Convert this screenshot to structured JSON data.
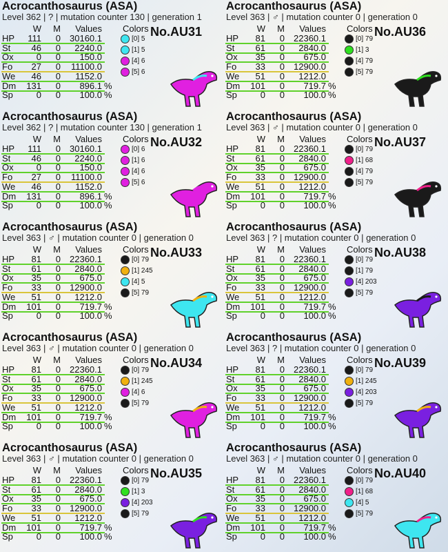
{
  "cards": [
    {
      "title": "Acrocanthosaurus (ASA)",
      "info": "Level 362 | ? | mutation counter 130 | generation 1",
      "headers": [
        "W",
        "M",
        "Values",
        "Colors"
      ],
      "id": "No.AU31",
      "stats": [
        {
          "name": "HP",
          "w": "111",
          "m": "0",
          "value": "30160.1"
        },
        {
          "name": "St",
          "w": "46",
          "m": "0",
          "value": "2240.0"
        },
        {
          "name": "Ox",
          "w": "0",
          "m": "0",
          "value": "150.0"
        },
        {
          "name": "Fo",
          "w": "27",
          "m": "0",
          "value": "11100.0"
        },
        {
          "name": "We",
          "w": "46",
          "m": "0",
          "value": "1152.0"
        },
        {
          "name": "Dm",
          "w": "131",
          "m": "0",
          "value": "896.1",
          "unit": "%"
        },
        {
          "name": "Sp",
          "w": "0",
          "m": "0",
          "value": "100.0",
          "unit": "%"
        }
      ],
      "colors": [
        {
          "label": "[0] 5",
          "color": "#3ee6f0"
        },
        {
          "label": "[1] 5",
          "color": "#3ee6f0"
        },
        {
          "label": "[4] 6",
          "color": "#e020e0"
        },
        {
          "label": "[5] 6",
          "color": "#e020e0"
        }
      ]
    },
    {
      "title": "Acrocanthosaurus (ASA)",
      "info": "Level 363 | ♂ | mutation counter 0 | generation 0",
      "headers": [
        "W",
        "M",
        "Values",
        "Colors"
      ],
      "id": "No.AU36",
      "stats": [
        {
          "name": "HP",
          "w": "81",
          "m": "0",
          "value": "22360.1"
        },
        {
          "name": "St",
          "w": "61",
          "m": "0",
          "value": "2840.0"
        },
        {
          "name": "Ox",
          "w": "35",
          "m": "0",
          "value": "675.0"
        },
        {
          "name": "Fo",
          "w": "33",
          "m": "0",
          "value": "12900.0"
        },
        {
          "name": "We",
          "w": "51",
          "m": "0",
          "value": "1212.0"
        },
        {
          "name": "Dm",
          "w": "101",
          "m": "0",
          "value": "719.7",
          "unit": "%"
        },
        {
          "name": "Sp",
          "w": "0",
          "m": "0",
          "value": "100.0",
          "unit": "%"
        }
      ],
      "colors": [
        {
          "label": "[0] 79",
          "color": "#1a1a1a"
        },
        {
          "label": "[1] 3",
          "color": "#30e020"
        },
        {
          "label": "[4] 79",
          "color": "#1a1a1a"
        },
        {
          "label": "[5] 79",
          "color": "#1a1a1a"
        }
      ]
    },
    {
      "title": "Acrocanthosaurus (ASA)",
      "info": "Level 362 | ? | mutation counter 130 | generation 1",
      "headers": [
        "W",
        "M",
        "Values",
        "Colors"
      ],
      "id": "No.AU32",
      "stats": [
        {
          "name": "HP",
          "w": "111",
          "m": "0",
          "value": "30160.1"
        },
        {
          "name": "St",
          "w": "46",
          "m": "0",
          "value": "2240.0"
        },
        {
          "name": "Ox",
          "w": "0",
          "m": "0",
          "value": "150.0"
        },
        {
          "name": "Fo",
          "w": "27",
          "m": "0",
          "value": "11100.0"
        },
        {
          "name": "We",
          "w": "46",
          "m": "0",
          "value": "1152.0"
        },
        {
          "name": "Dm",
          "w": "131",
          "m": "0",
          "value": "896.1",
          "unit": "%"
        },
        {
          "name": "Sp",
          "w": "0",
          "m": "0",
          "value": "100.0",
          "unit": "%"
        }
      ],
      "colors": [
        {
          "label": "[0] 6",
          "color": "#e020e0"
        },
        {
          "label": "[1] 6",
          "color": "#e020e0"
        },
        {
          "label": "[4] 6",
          "color": "#e020e0"
        },
        {
          "label": "[5] 6",
          "color": "#e020e0"
        }
      ]
    },
    {
      "title": "Acrocanthosaurus (ASA)",
      "info": "Level 363 | ♂ | mutation counter 0 | generation 0",
      "headers": [
        "W",
        "M",
        "Values",
        "Colors"
      ],
      "id": "No.AU37",
      "stats": [
        {
          "name": "HP",
          "w": "81",
          "m": "0",
          "value": "22360.1"
        },
        {
          "name": "St",
          "w": "61",
          "m": "0",
          "value": "2840.0"
        },
        {
          "name": "Ox",
          "w": "35",
          "m": "0",
          "value": "675.0"
        },
        {
          "name": "Fo",
          "w": "33",
          "m": "0",
          "value": "12900.0"
        },
        {
          "name": "We",
          "w": "51",
          "m": "0",
          "value": "1212.0"
        },
        {
          "name": "Dm",
          "w": "101",
          "m": "0",
          "value": "719.7",
          "unit": "%"
        },
        {
          "name": "Sp",
          "w": "0",
          "m": "0",
          "value": "100.0",
          "unit": "%"
        }
      ],
      "colors": [
        {
          "label": "[0] 79",
          "color": "#1a1a1a"
        },
        {
          "label": "[1] 68",
          "color": "#f0208a"
        },
        {
          "label": "[4] 79",
          "color": "#1a1a1a"
        },
        {
          "label": "[5] 79",
          "color": "#1a1a1a"
        }
      ]
    },
    {
      "title": "Acrocanthosaurus (ASA)",
      "info": "Level 363 | ♂ | mutation counter 0 | generation 0",
      "headers": [
        "W",
        "M",
        "Values",
        "Colors"
      ],
      "id": "No.AU33",
      "stats": [
        {
          "name": "HP",
          "w": "81",
          "m": "0",
          "value": "22360.1"
        },
        {
          "name": "St",
          "w": "61",
          "m": "0",
          "value": "2840.0"
        },
        {
          "name": "Ox",
          "w": "35",
          "m": "0",
          "value": "675.0"
        },
        {
          "name": "Fo",
          "w": "33",
          "m": "0",
          "value": "12900.0"
        },
        {
          "name": "We",
          "w": "51",
          "m": "0",
          "value": "1212.0"
        },
        {
          "name": "Dm",
          "w": "101",
          "m": "0",
          "value": "719.7",
          "unit": "%"
        },
        {
          "name": "Sp",
          "w": "0",
          "m": "0",
          "value": "100.0",
          "unit": "%"
        }
      ],
      "colors": [
        {
          "label": "[0] 79",
          "color": "#1a1a1a"
        },
        {
          "label": "[1] 245",
          "color": "#f0b010"
        },
        {
          "label": "[4] 5",
          "color": "#3ee6f0"
        },
        {
          "label": "[5] 79",
          "color": "#1a1a1a"
        }
      ]
    },
    {
      "title": "Acrocanthosaurus (ASA)",
      "info": "Level 363 | ? | mutation counter 0 | generation 0",
      "headers": [
        "W",
        "M",
        "Values",
        "Colors"
      ],
      "id": "No.AU38",
      "stats": [
        {
          "name": "HP",
          "w": "81",
          "m": "0",
          "value": "22360.1"
        },
        {
          "name": "St",
          "w": "61",
          "m": "0",
          "value": "2840.0"
        },
        {
          "name": "Ox",
          "w": "35",
          "m": "0",
          "value": "675.0"
        },
        {
          "name": "Fo",
          "w": "33",
          "m": "0",
          "value": "12900.0"
        },
        {
          "name": "We",
          "w": "51",
          "m": "0",
          "value": "1212.0"
        },
        {
          "name": "Dm",
          "w": "101",
          "m": "0",
          "value": "719.7",
          "unit": "%"
        },
        {
          "name": "Sp",
          "w": "0",
          "m": "0",
          "value": "100.0",
          "unit": "%"
        }
      ],
      "colors": [
        {
          "label": "[0] 79",
          "color": "#1a1a1a"
        },
        {
          "label": "[1] 79",
          "color": "#1a1a1a"
        },
        {
          "label": "[4] 203",
          "color": "#7a20e0"
        },
        {
          "label": "[5] 79",
          "color": "#1a1a1a"
        }
      ]
    },
    {
      "title": "Acrocanthosaurus (ASA)",
      "info": "Level 363 | ♂ | mutation counter 0 | generation 0",
      "headers": [
        "W",
        "M",
        "Values",
        "Colors"
      ],
      "id": "No.AU34",
      "stats": [
        {
          "name": "HP",
          "w": "81",
          "m": "0",
          "value": "22360.1"
        },
        {
          "name": "St",
          "w": "61",
          "m": "0",
          "value": "2840.0"
        },
        {
          "name": "Ox",
          "w": "35",
          "m": "0",
          "value": "675.0"
        },
        {
          "name": "Fo",
          "w": "33",
          "m": "0",
          "value": "12900.0"
        },
        {
          "name": "We",
          "w": "51",
          "m": "0",
          "value": "1212.0"
        },
        {
          "name": "Dm",
          "w": "101",
          "m": "0",
          "value": "719.7",
          "unit": "%"
        },
        {
          "name": "Sp",
          "w": "0",
          "m": "0",
          "value": "100.0",
          "unit": "%"
        }
      ],
      "colors": [
        {
          "label": "[0] 79",
          "color": "#1a1a1a"
        },
        {
          "label": "[1] 245",
          "color": "#f0b010"
        },
        {
          "label": "[4] 6",
          "color": "#e020e0"
        },
        {
          "label": "[5] 79",
          "color": "#1a1a1a"
        }
      ]
    },
    {
      "title": "Acrocanthosaurus (ASA)",
      "info": "Level 363 | ? | mutation counter 0 | generation 0",
      "headers": [
        "W",
        "M",
        "Values",
        "Colors"
      ],
      "id": "No.AU39",
      "stats": [
        {
          "name": "HP",
          "w": "81",
          "m": "0",
          "value": "22360.1"
        },
        {
          "name": "St",
          "w": "61",
          "m": "0",
          "value": "2840.0"
        },
        {
          "name": "Ox",
          "w": "35",
          "m": "0",
          "value": "675.0"
        },
        {
          "name": "Fo",
          "w": "33",
          "m": "0",
          "value": "12900.0"
        },
        {
          "name": "We",
          "w": "51",
          "m": "0",
          "value": "1212.0"
        },
        {
          "name": "Dm",
          "w": "101",
          "m": "0",
          "value": "719.7",
          "unit": "%"
        },
        {
          "name": "Sp",
          "w": "0",
          "m": "0",
          "value": "100.0",
          "unit": "%"
        }
      ],
      "colors": [
        {
          "label": "[0] 79",
          "color": "#1a1a1a"
        },
        {
          "label": "[1] 245",
          "color": "#f0b010"
        },
        {
          "label": "[4] 203",
          "color": "#7a20e0"
        },
        {
          "label": "[5] 79",
          "color": "#1a1a1a"
        }
      ]
    },
    {
      "title": "Acrocanthosaurus (ASA)",
      "info": "Level 363 | ♂ | mutation counter 0 | generation 0",
      "headers": [
        "W",
        "M",
        "Values",
        "Colors"
      ],
      "id": "No.AU35",
      "stats": [
        {
          "name": "HP",
          "w": "81",
          "m": "0",
          "value": "22360.1"
        },
        {
          "name": "St",
          "w": "61",
          "m": "0",
          "value": "2840.0"
        },
        {
          "name": "Ox",
          "w": "35",
          "m": "0",
          "value": "675.0"
        },
        {
          "name": "Fo",
          "w": "33",
          "m": "0",
          "value": "12900.0"
        },
        {
          "name": "We",
          "w": "51",
          "m": "0",
          "value": "1212.0"
        },
        {
          "name": "Dm",
          "w": "101",
          "m": "0",
          "value": "719.7",
          "unit": "%"
        },
        {
          "name": "Sp",
          "w": "0",
          "m": "0",
          "value": "100.0",
          "unit": "%"
        }
      ],
      "colors": [
        {
          "label": "[0] 79",
          "color": "#1a1a1a"
        },
        {
          "label": "[1] 3",
          "color": "#30e020"
        },
        {
          "label": "[4] 203",
          "color": "#7a20e0"
        },
        {
          "label": "[5] 79",
          "color": "#1a1a1a"
        }
      ]
    },
    {
      "title": "Acrocanthosaurus (ASA)",
      "info": "Level 363 | ♂ | mutation counter 0 | generation 0",
      "headers": [
        "W",
        "M",
        "Values",
        "Colors"
      ],
      "id": "No.AU40",
      "stats": [
        {
          "name": "HP",
          "w": "81",
          "m": "0",
          "value": "22360.1"
        },
        {
          "name": "St",
          "w": "61",
          "m": "0",
          "value": "2840.0"
        },
        {
          "name": "Ox",
          "w": "35",
          "m": "0",
          "value": "675.0"
        },
        {
          "name": "Fo",
          "w": "33",
          "m": "0",
          "value": "12900.0"
        },
        {
          "name": "We",
          "w": "51",
          "m": "0",
          "value": "1212.0"
        },
        {
          "name": "Dm",
          "w": "101",
          "m": "0",
          "value": "719.7",
          "unit": "%"
        },
        {
          "name": "Sp",
          "w": "0",
          "m": "0",
          "value": "100.0",
          "unit": "%"
        }
      ],
      "colors": [
        {
          "label": "[0] 79",
          "color": "#1a1a1a"
        },
        {
          "label": "[1] 68",
          "color": "#f0208a"
        },
        {
          "label": "[4] 5",
          "color": "#3ee6f0"
        },
        {
          "label": "[5] 79",
          "color": "#1a1a1a"
        }
      ]
    }
  ]
}
